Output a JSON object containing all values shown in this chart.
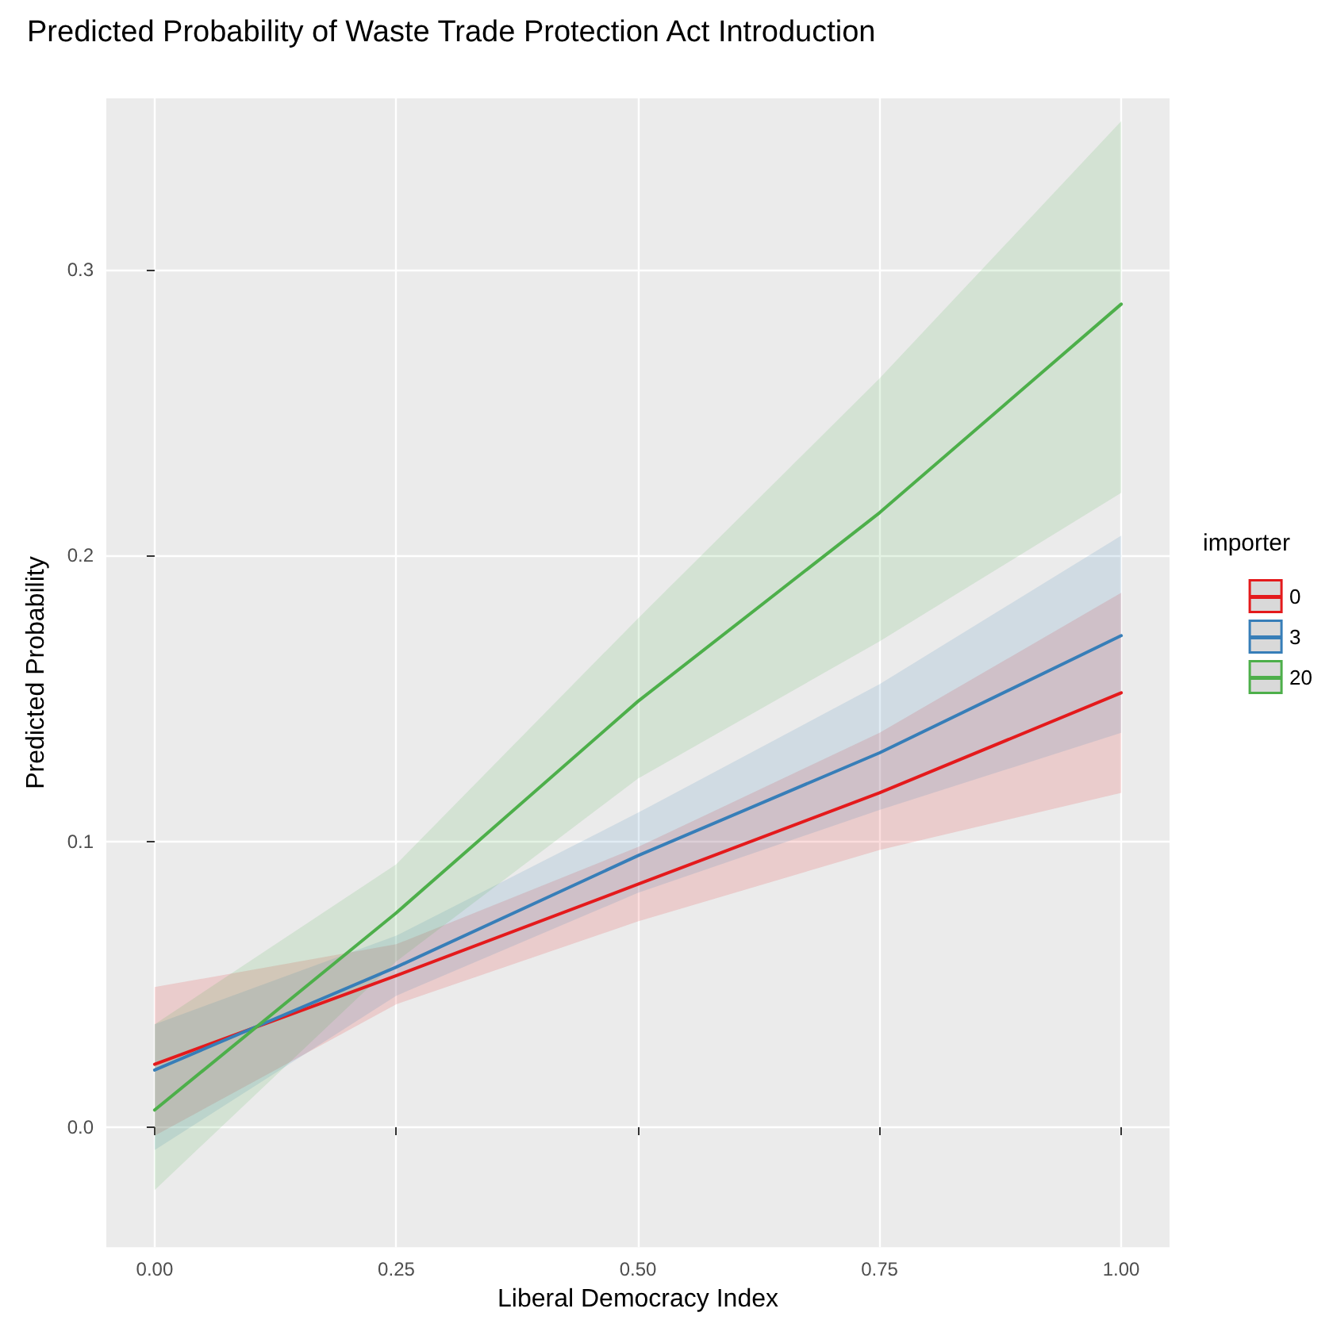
{
  "chart_data": {
    "type": "line",
    "title": "Predicted Probability of Waste Trade Protection Act Introduction",
    "xlabel": "Liberal Democracy Index",
    "ylabel": "Predicted Probability",
    "legend_title": "importer",
    "x": [
      0,
      0.25,
      0.5,
      0.75,
      1
    ],
    "series": [
      {
        "name": "0",
        "color": "#e41a1c",
        "values": [
          0.022,
          0.053,
          0.085,
          0.117,
          0.152
        ],
        "lower": [
          -0.003,
          0.043,
          0.072,
          0.097,
          0.117
        ],
        "upper": [
          0.049,
          0.064,
          0.098,
          0.138,
          0.187
        ]
      },
      {
        "name": "3",
        "color": "#377eb8",
        "values": [
          0.02,
          0.056,
          0.095,
          0.131,
          0.172
        ],
        "lower": [
          -0.008,
          0.046,
          0.082,
          0.111,
          0.138
        ],
        "upper": [
          0.036,
          0.067,
          0.11,
          0.155,
          0.207
        ]
      },
      {
        "name": "20",
        "color": "#4daf4a",
        "values": [
          0.006,
          0.075,
          0.149,
          0.215,
          0.288
        ],
        "lower": [
          -0.022,
          0.058,
          0.122,
          0.17,
          0.222
        ],
        "upper": [
          0.036,
          0.092,
          0.178,
          0.262,
          0.352
        ]
      }
    ],
    "xlim": [
      -0.05,
      1.05
    ],
    "xticks": [
      {
        "value": 0,
        "label": "0.00"
      },
      {
        "value": 0.25,
        "label": "0.25"
      },
      {
        "value": 0.5,
        "label": "0.50"
      },
      {
        "value": 0.75,
        "label": "0.75"
      },
      {
        "value": 1,
        "label": "1.00"
      }
    ],
    "ylim": [
      -0.042,
      0.36
    ],
    "yticks": [
      {
        "value": 0,
        "label": "0.0"
      },
      {
        "value": 0.1,
        "label": "0.1"
      },
      {
        "value": 0.2,
        "label": "0.2"
      },
      {
        "value": 0.3,
        "label": "0.3"
      }
    ],
    "grid": true,
    "legend": "right",
    "marker": "none",
    "line_style": "solid"
  }
}
